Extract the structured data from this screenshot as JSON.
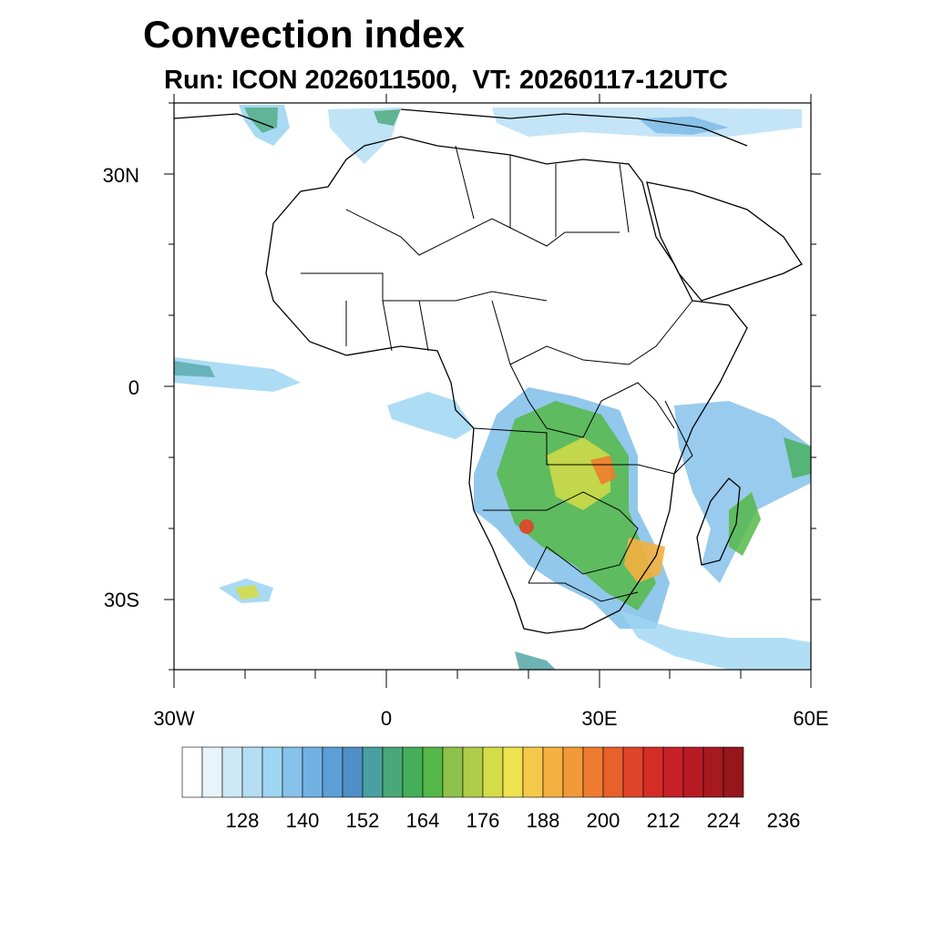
{
  "title": "Convection index",
  "subtitle": "Run: ICON 2026011500,  VT: 20260117-12UTC",
  "axes": {
    "lat_labels": [
      "30N",
      "0",
      "30S"
    ],
    "lon_labels": [
      "30W",
      "0",
      "30E",
      "60E"
    ]
  },
  "colorbar": {
    "labels": [
      "128",
      "140",
      "152",
      "164",
      "176",
      "188",
      "200",
      "212",
      "224",
      "236"
    ],
    "colors": [
      "#ffffff",
      "#e8f4fb",
      "#cde8f6",
      "#b5def5",
      "#9fd6f3",
      "#86c2ea",
      "#72b2e3",
      "#5b9fd6",
      "#4f8fc7",
      "#4aa0a0",
      "#48a878",
      "#45ae5a",
      "#55b848",
      "#8ec24a",
      "#b0cc48",
      "#d4dc48",
      "#eee24e",
      "#f6c84a",
      "#f4b040",
      "#f29a38",
      "#ee7c30",
      "#e8602a",
      "#e04428",
      "#d62c28",
      "#c82028",
      "#b81a24",
      "#a81820",
      "#96161c"
    ]
  },
  "colors": {
    "border": "#000000",
    "frame": "#000000"
  }
}
